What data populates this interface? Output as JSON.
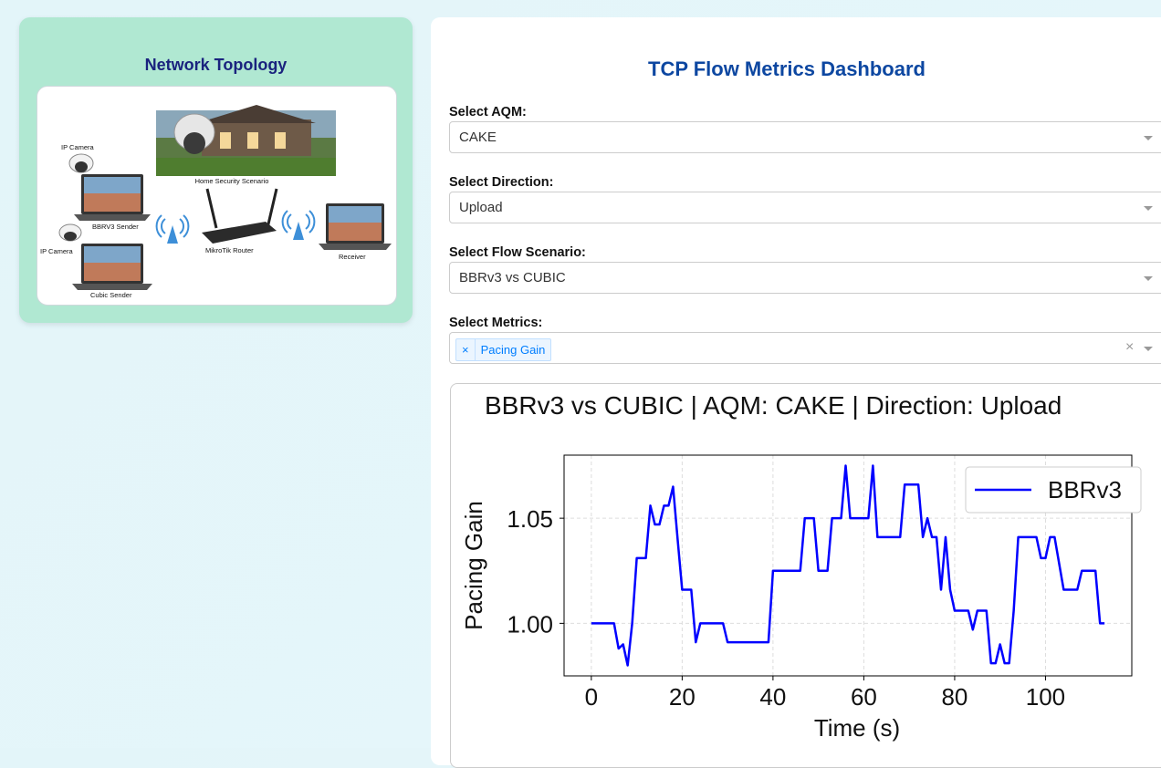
{
  "left_panel": {
    "title": "Network Topology",
    "labels": {
      "ip_camera_1": "IP Camera",
      "ip_camera_2": "IP Camera",
      "home_security": "Home Security Scenario",
      "bbrv3_sender": "BBRV3 Sender",
      "cubic_sender": "Cubic Sender",
      "router": "MikroTik Router",
      "receiver": "Receiver"
    }
  },
  "dashboard": {
    "title": "TCP Flow Metrics Dashboard",
    "aqm": {
      "label": "Select AQM:",
      "value": "CAKE"
    },
    "direction": {
      "label": "Select Direction:",
      "value": "Upload"
    },
    "scenario": {
      "label": "Select Flow Scenario:",
      "value": "BBRv3 vs CUBIC"
    },
    "metrics": {
      "label": "Select Metrics:",
      "selected": "Pacing Gain",
      "remove_glyph": "×",
      "clear_glyph": "×"
    }
  },
  "chart_data": {
    "type": "line",
    "title": "BBRv3 vs CUBIC | AQM: CAKE | Direction: Upload",
    "xlabel": "Time (s)",
    "ylabel": "Pacing Gain",
    "xlim": [
      -6,
      119
    ],
    "ylim": [
      0.975,
      1.08
    ],
    "xticks": [
      0,
      20,
      40,
      60,
      80,
      100
    ],
    "xtick_labels": [
      "0",
      "20",
      "40",
      "60",
      "80",
      "100"
    ],
    "yticks": [
      1.0,
      1.05
    ],
    "ytick_labels": [
      "1.00",
      "1.05"
    ],
    "grid": true,
    "legend": "top-right",
    "colors": {
      "BBRv3": "#0000ff"
    },
    "series": [
      {
        "name": "BBRv3",
        "x": [
          0,
          5,
          6,
          7,
          8,
          9,
          10,
          11,
          12,
          13,
          14,
          15,
          16,
          17,
          18,
          19,
          20,
          21,
          22,
          23,
          24,
          25,
          26,
          27,
          28,
          29,
          30,
          31,
          32,
          34,
          36,
          38,
          39,
          40,
          42,
          44,
          46,
          47,
          48,
          49,
          50,
          51,
          52,
          53,
          54,
          55,
          56,
          57,
          58,
          60,
          61,
          62,
          63,
          64,
          66,
          68,
          69,
          70,
          72,
          73,
          74,
          75,
          76,
          77,
          78,
          79,
          80,
          82,
          83,
          84,
          85,
          86,
          87,
          88,
          89,
          90,
          91,
          92,
          93,
          94,
          96,
          97,
          98,
          99,
          100,
          101,
          102,
          104,
          106,
          107,
          108,
          110,
          111,
          112,
          113
        ],
        "values": [
          1.0,
          1.0,
          0.988,
          0.99,
          0.98,
          1.0,
          1.031,
          1.031,
          1.031,
          1.056,
          1.047,
          1.047,
          1.056,
          1.056,
          1.065,
          1.04,
          1.016,
          1.016,
          1.016,
          0.991,
          1.0,
          1.0,
          1.0,
          1.0,
          1.0,
          1.0,
          0.991,
          0.991,
          0.991,
          0.991,
          0.991,
          0.991,
          0.991,
          1.025,
          1.025,
          1.025,
          1.025,
          1.05,
          1.05,
          1.05,
          1.025,
          1.025,
          1.025,
          1.05,
          1.05,
          1.05,
          1.075,
          1.05,
          1.05,
          1.05,
          1.05,
          1.075,
          1.041,
          1.041,
          1.041,
          1.041,
          1.066,
          1.066,
          1.066,
          1.041,
          1.05,
          1.041,
          1.041,
          1.016,
          1.041,
          1.016,
          1.006,
          1.006,
          1.006,
          0.997,
          1.006,
          1.006,
          1.006,
          0.981,
          0.981,
          0.99,
          0.981,
          0.981,
          1.006,
          1.041,
          1.041,
          1.041,
          1.041,
          1.031,
          1.031,
          1.041,
          1.041,
          1.016,
          1.016,
          1.016,
          1.025,
          1.025,
          1.025,
          1.0,
          1.0
        ]
      }
    ]
  }
}
